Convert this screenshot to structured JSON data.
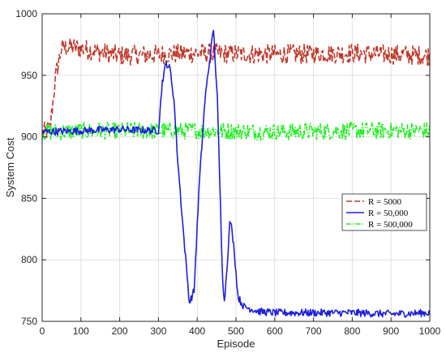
{
  "chart_data": {
    "type": "line",
    "title": "",
    "xlabel": "Episode",
    "ylabel": "System Cost",
    "xlim": [
      0,
      1000
    ],
    "ylim": [
      750,
      1000
    ],
    "xticks": [
      0,
      100,
      200,
      300,
      400,
      500,
      600,
      700,
      800,
      900,
      1000
    ],
    "yticks": [
      750,
      800,
      850,
      900,
      950,
      1000
    ],
    "grid": true,
    "legend_position": "center-right",
    "series": [
      {
        "name": "R = 5000",
        "color": "#c0392b",
        "style": "dashed",
        "noise": 8,
        "points": [
          [
            0,
            903
          ],
          [
            20,
            906
          ],
          [
            35,
            950
          ],
          [
            50,
            972
          ],
          [
            80,
            973
          ],
          [
            200,
            966
          ],
          [
            400,
            968
          ],
          [
            600,
            967
          ],
          [
            800,
            968
          ],
          [
            1000,
            966
          ]
        ]
      },
      {
        "name": "R = 50,000",
        "color": "#1f1fdc",
        "style": "solid",
        "noise": 3,
        "points": [
          [
            0,
            904
          ],
          [
            100,
            905
          ],
          [
            200,
            906
          ],
          [
            300,
            905
          ],
          [
            310,
            945
          ],
          [
            320,
            960
          ],
          [
            330,
            955
          ],
          [
            340,
            930
          ],
          [
            350,
            880
          ],
          [
            365,
            820
          ],
          [
            380,
            765
          ],
          [
            392,
            775
          ],
          [
            405,
            860
          ],
          [
            420,
            930
          ],
          [
            432,
            962
          ],
          [
            442,
            988
          ],
          [
            452,
            930
          ],
          [
            465,
            790
          ],
          [
            470,
            765
          ],
          [
            478,
            800
          ],
          [
            485,
            834
          ],
          [
            495,
            810
          ],
          [
            505,
            770
          ],
          [
            520,
            762
          ],
          [
            560,
            758
          ],
          [
            600,
            757
          ],
          [
            700,
            757
          ],
          [
            800,
            757
          ],
          [
            900,
            756
          ],
          [
            1000,
            757
          ]
        ]
      },
      {
        "name": "R = 500,000",
        "color": "#22ee22",
        "style": "dashdot",
        "noise": 7,
        "points": [
          [
            0,
            904
          ],
          [
            200,
            905
          ],
          [
            400,
            905
          ],
          [
            600,
            904
          ],
          [
            800,
            905
          ],
          [
            1000,
            905
          ]
        ]
      }
    ]
  }
}
